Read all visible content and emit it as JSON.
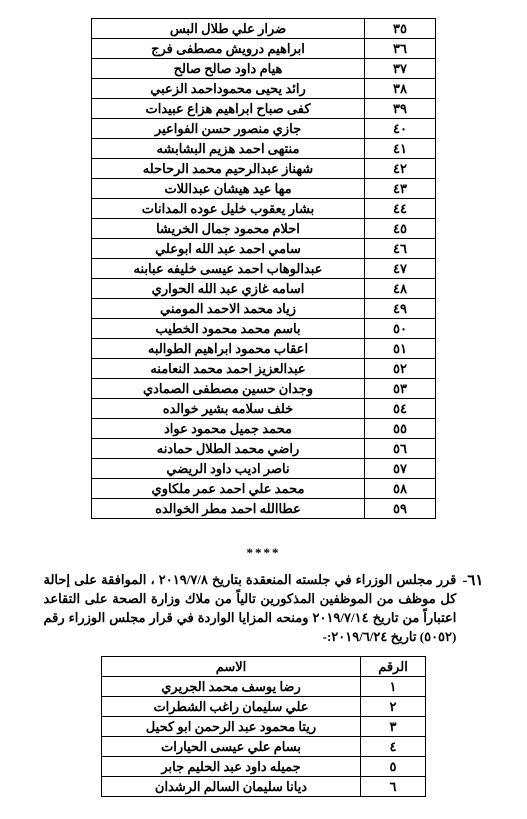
{
  "table1": {
    "rows": [
      {
        "n": "٣٥",
        "name": "ضرار علي طلال البس"
      },
      {
        "n": "٣٦",
        "name": "ابراهيم درويش مصطفى فرج"
      },
      {
        "n": "٣٧",
        "name": "هيام داود صالح صالح"
      },
      {
        "n": "٣٨",
        "name": "رائد يحيى محموداحمد الزعبي"
      },
      {
        "n": "٣٩",
        "name": "كفى صباح ابراهيم هزاع عبيدات"
      },
      {
        "n": "٤٠",
        "name": "جازي منصور حسن الفواعير"
      },
      {
        "n": "٤١",
        "name": "منتهى احمد هزيم البشابشه"
      },
      {
        "n": "٤٢",
        "name": "شهناز عبدالرحيم محمد الرحاحله"
      },
      {
        "n": "٤٣",
        "name": "مها عيد هيشان عبداللات"
      },
      {
        "n": "٤٤",
        "name": "بشار يعقوب خليل عوده المدانات"
      },
      {
        "n": "٤٥",
        "name": "احلام محمود جمال الخريشا"
      },
      {
        "n": "٤٦",
        "name": "سامي احمد عبد الله ابوعلي"
      },
      {
        "n": "٤٧",
        "name": "عبدالوهاب احمد عيسى خليفه عبابنه"
      },
      {
        "n": "٤٨",
        "name": "اسامه غازي عبد الله الحواري"
      },
      {
        "n": "٤٩",
        "name": "زياد محمد الاحمد المومني"
      },
      {
        "n": "٥٠",
        "name": "باسم محمد محمود الخطيب"
      },
      {
        "n": "٥١",
        "name": "اعقاب محمود ابراهيم الطوالبه"
      },
      {
        "n": "٥٢",
        "name": "عبدالعزيز احمد محمد النعامنه"
      },
      {
        "n": "٥٣",
        "name": "وجدان حسين مصطفى الصمادي"
      },
      {
        "n": "٥٤",
        "name": "خلف سلامه بشير خوالده"
      },
      {
        "n": "٥٥",
        "name": "محمد جميل محمود عواد"
      },
      {
        "n": "٥٦",
        "name": "راضي محمد الطلال حمادنه"
      },
      {
        "n": "٥٧",
        "name": "ناصر اديب داود الريضي"
      },
      {
        "n": "٥٨",
        "name": "محمد علي احمد عمر ملكاوي"
      },
      {
        "n": "٥٩",
        "name": "عطاالله احمد مطر الخوالده"
      }
    ]
  },
  "separator": "****",
  "paragraph": {
    "num": "٦١-",
    "text": "قرر مجلس الوزراء في جلسته المنعقدة بتاريخ ٢٠١٩/٧/٨ ، الموافقة على إحالة كل موظف من الموظفين المذكورين تالياً من ملاك وزارة الصحة على التقاعد اعتباراً من تاريخ ٢٠١٩/٧/١٤ ومنحه المزايا الواردة في قرار مجلس الوزراء رقم (٥٠٥٢) تاريخ ٢٠١٩/٦/٢٤:-"
  },
  "table2": {
    "headers": {
      "num": "الرقم",
      "name": "الاسم"
    },
    "rows": [
      {
        "n": "١",
        "name": "رضا يوسف محمد الجريري"
      },
      {
        "n": "٢",
        "name": "علي سليمان راغب الشطرات"
      },
      {
        "n": "٣",
        "name": "ريتا محمود عبد الرحمن ابو كحيل"
      },
      {
        "n": "٤",
        "name": "بسام علي عيسى الحيارات"
      },
      {
        "n": "٥",
        "name": "جميله داود عبد الحليم جابر"
      },
      {
        "n": "٦",
        "name": "ديانا سليمان السالم الرشدان"
      }
    ]
  }
}
